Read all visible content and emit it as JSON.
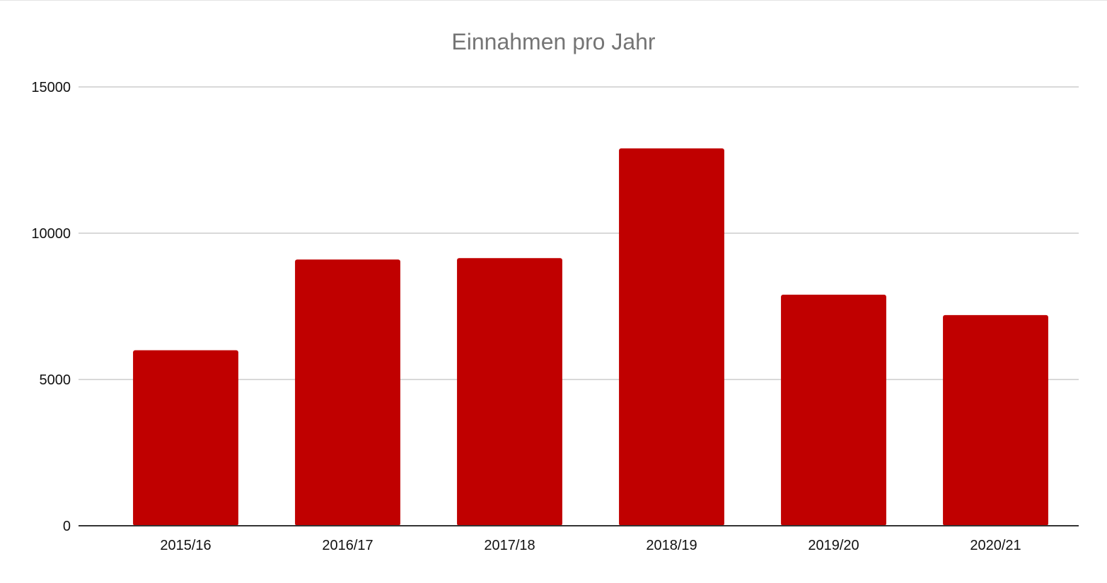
{
  "chart_data": {
    "type": "bar",
    "title": "Einnahmen pro Jahr",
    "xlabel": "",
    "ylabel": "",
    "categories": [
      "2015/16",
      "2016/17",
      "2017/18",
      "2018/19",
      "2019/20",
      "2020/21"
    ],
    "values": [
      6000,
      9100,
      9150,
      12900,
      7900,
      7200
    ],
    "ylim": [
      0,
      15000
    ],
    "yticks": [
      0,
      5000,
      10000,
      15000
    ],
    "ytick_labels": [
      "0",
      "5000",
      "10000",
      "15000"
    ],
    "grid": true,
    "legend": "none",
    "colors": {
      "bar": "#c00000",
      "grid": "#d9d9d9",
      "axis": "#333333",
      "title": "#757575"
    }
  }
}
